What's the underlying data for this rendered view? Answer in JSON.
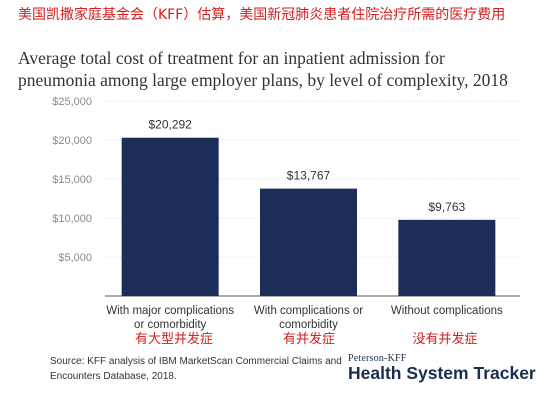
{
  "annotation_cn": "美国凯撒家庭基金会（KFF）估算，美国新冠肺炎患者住院治疗所需的医疗费用",
  "categories_cn": [
    "有大型并发症",
    "有并发症",
    "没有并发症"
  ],
  "source": {
    "line1": "Source: KFF analysis of IBM MarketScan Commercial Claims and",
    "line2": "Encounters Database, 2018."
  },
  "brand": {
    "small": "Peterson-KFF",
    "big": "Health System Tracker"
  },
  "colors": {
    "bar": "#1c2e58",
    "annotation": "#d41f1f",
    "grid": "#d9d9d9"
  },
  "chart_data": {
    "type": "bar",
    "title_lines": [
      "Average total cost of treatment for an inpatient admission for",
      "pneumonia among large employer plans, by level of complexity, 2018"
    ],
    "categories": [
      [
        "With major complications",
        "or comorbidity"
      ],
      [
        "With complications or",
        "comorbidity"
      ],
      [
        "Without complications"
      ]
    ],
    "values": [
      20292,
      13767,
      9763
    ],
    "value_labels": [
      "$20,292",
      "$13,767",
      "$9,763"
    ],
    "yticks": [
      5000,
      10000,
      15000,
      20000,
      25000
    ],
    "ytick_labels": [
      "$5,000",
      "$10,000",
      "$15,000",
      "$20,000",
      "$25,000"
    ],
    "ylim": [
      0,
      25000
    ],
    "grid": true
  }
}
